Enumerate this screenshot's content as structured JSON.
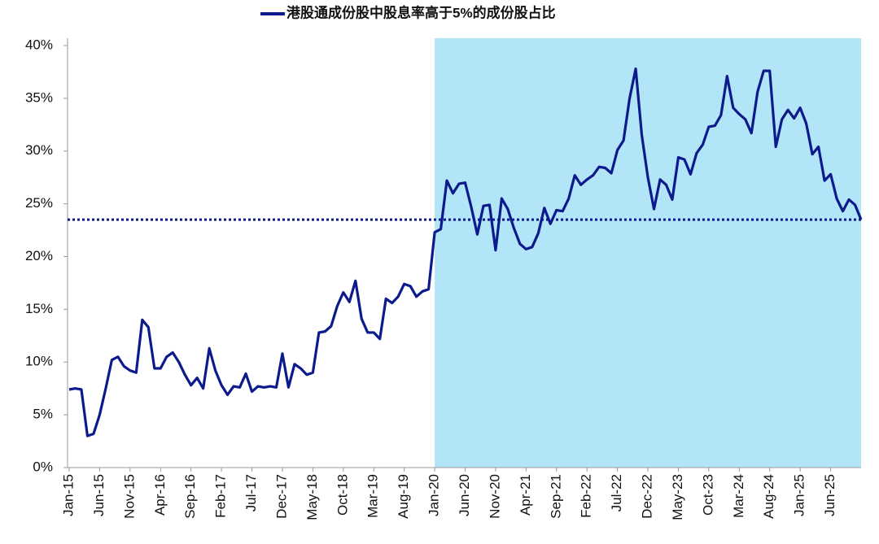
{
  "chart_data": {
    "type": "line",
    "categories": [
      "Jan-15",
      null,
      null,
      null,
      null,
      "Jun-15",
      null,
      null,
      null,
      null,
      "Nov-15",
      null,
      null,
      null,
      null,
      "Apr-16",
      null,
      null,
      null,
      null,
      "Sep-16",
      null,
      null,
      null,
      null,
      "Feb-17",
      null,
      null,
      null,
      null,
      "Jul-17",
      null,
      null,
      null,
      null,
      "Dec-17",
      null,
      null,
      null,
      null,
      "May-18",
      null,
      null,
      null,
      null,
      "Oct-18",
      null,
      null,
      null,
      null,
      "Mar-19",
      null,
      null,
      null,
      null,
      "Aug-19",
      null,
      null,
      null,
      null,
      "Jan-20",
      null,
      null,
      null,
      null,
      "Jun-20",
      null,
      null,
      null,
      null,
      "Nov-20",
      null,
      null,
      null,
      null,
      "Apr-21",
      null,
      null,
      null,
      null,
      "Sep-21",
      null,
      null,
      null,
      null,
      "Feb-22",
      null,
      null,
      null,
      null,
      "Jul-22",
      null,
      null,
      null,
      null,
      "Dec-22",
      null,
      null,
      null,
      null,
      "May-23",
      null,
      null,
      null,
      null,
      "Oct-23",
      null,
      null,
      null,
      null,
      "Mar-24",
      null,
      null,
      null,
      null,
      "Aug-24",
      null,
      null,
      null,
      null,
      "Jan-25",
      null,
      null,
      null,
      null,
      "Jun-25",
      null,
      null,
      null,
      null,
      null
    ],
    "series": [
      {
        "name": "港股通成份股中股息率高于5%的成份股占比",
        "color": "#0c1a8c",
        "values": [
          7.4,
          7.5,
          7.4,
          3.0,
          3.2,
          5.0,
          7.5,
          10.2,
          10.5,
          9.6,
          9.2,
          9.0,
          14.0,
          13.3,
          9.4,
          9.4,
          10.5,
          10.9,
          10.0,
          8.8,
          7.8,
          8.5,
          7.5,
          11.3,
          9.2,
          7.8,
          6.9,
          7.7,
          7.6,
          8.9,
          7.2,
          7.7,
          7.6,
          7.7,
          7.6,
          10.8,
          7.6,
          9.8,
          9.4,
          8.8,
          9.0,
          12.8,
          12.9,
          13.4,
          15.3,
          16.6,
          15.7,
          17.7,
          14.1,
          12.8,
          12.8,
          12.2,
          16.0,
          15.6,
          16.2,
          17.4,
          17.2,
          16.2,
          16.7,
          16.9,
          22.3,
          22.6,
          27.2,
          26.0,
          26.9,
          27.0,
          24.7,
          22.1,
          24.8,
          24.9,
          20.6,
          25.5,
          24.5,
          22.7,
          21.2,
          20.7,
          20.9,
          22.2,
          24.6,
          23.1,
          24.4,
          24.3,
          25.5,
          27.7,
          26.8,
          27.3,
          27.7,
          28.5,
          28.4,
          27.9,
          30.1,
          31.0,
          35.0,
          37.8,
          31.5,
          27.5,
          24.5,
          27.3,
          26.8,
          25.4,
          29.4,
          29.2,
          27.8,
          29.8,
          30.6,
          32.3,
          32.4,
          33.4,
          37.1,
          34.1,
          33.5,
          33.0,
          31.7,
          35.6,
          37.6,
          37.6,
          30.4,
          33.0,
          33.9,
          33.1,
          34.1,
          32.6,
          29.7,
          30.4,
          27.2,
          27.8,
          25.5,
          24.3,
          25.4,
          24.9,
          23.5
        ]
      }
    ],
    "ylim": [
      0,
      40
    ],
    "yticks": [
      {
        "value": 0,
        "label": "0%"
      },
      {
        "value": 5,
        "label": "5%"
      },
      {
        "value": 10,
        "label": "10%"
      },
      {
        "value": 15,
        "label": "15%"
      },
      {
        "value": 20,
        "label": "20%"
      },
      {
        "value": 25,
        "label": "25%"
      },
      {
        "value": 30,
        "label": "30%"
      },
      {
        "value": 35,
        "label": "35%"
      },
      {
        "value": 40,
        "label": "40%"
      }
    ],
    "reference_line": {
      "value": 23.5,
      "color": "#0c1a8c"
    },
    "highlight_from": "Jan-20",
    "highlight_color": "#b3e5f8",
    "legend": "top"
  }
}
